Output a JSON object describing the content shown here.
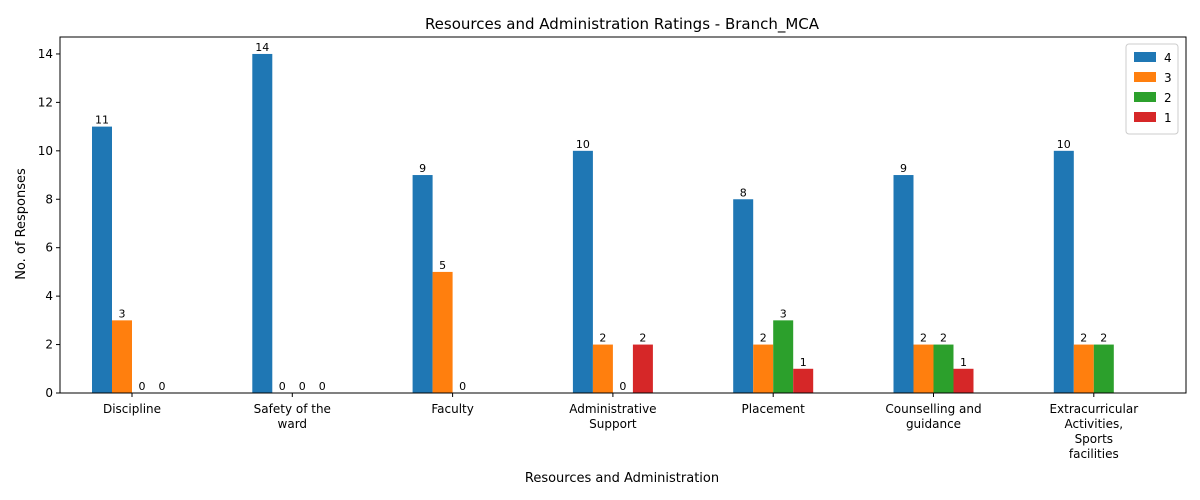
{
  "chart_data": {
    "type": "bar",
    "title": "Resources and Administration Ratings - Branch_MCA",
    "xlabel": "Resources and Administration",
    "ylabel": "No. of Responses",
    "ylim": [
      0,
      14.7
    ],
    "yticks": [
      0,
      2,
      4,
      6,
      8,
      10,
      12,
      14
    ],
    "categories": [
      [
        "Discipline"
      ],
      [
        "Safety of the",
        "ward"
      ],
      [
        "Faculty"
      ],
      [
        "Administrative",
        "Support"
      ],
      [
        "Placement"
      ],
      [
        "Counselling and",
        "guidance"
      ],
      [
        "Extracurricular",
        "Activities,",
        "Sports",
        "facilities"
      ]
    ],
    "series": [
      {
        "name": "4",
        "color": "#1f77b4",
        "values": [
          11,
          14,
          9,
          10,
          8,
          9,
          10
        ]
      },
      {
        "name": "3",
        "color": "#ff7f0e",
        "values": [
          3,
          0,
          5,
          2,
          2,
          2,
          2
        ]
      },
      {
        "name": "2",
        "color": "#2ca02c",
        "values": [
          0,
          0,
          0,
          0,
          3,
          2,
          2
        ]
      },
      {
        "name": "1",
        "color": "#d62728",
        "values": [
          0,
          0,
          null,
          2,
          1,
          1,
          null
        ]
      }
    ],
    "grid": false,
    "legend_position": "top-right"
  }
}
